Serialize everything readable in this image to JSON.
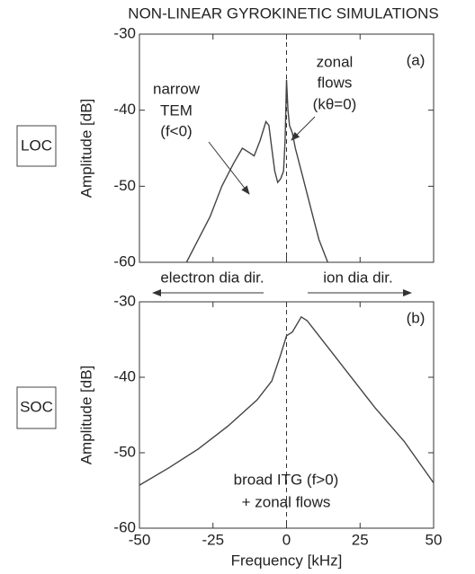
{
  "chart_data": [
    {
      "type": "line",
      "title": "NON-LINEAR GYROKINETIC SIMULATIONS",
      "side_label": "LOC",
      "ylabel": "Amplitude [dB]",
      "annotations": [
        "(a)",
        "narrow",
        "TEM",
        "(f<0)",
        "zonal",
        "flows",
        "(kθ=0)",
        "electron dia dir.",
        "ion dia dir."
      ],
      "x": [
        -34,
        -30,
        -26,
        -22,
        -18,
        -15,
        -13,
        -11,
        -9,
        -7,
        -6,
        -5,
        -4,
        -3,
        -2,
        -1,
        -0.5,
        0,
        0.5,
        1,
        2,
        3,
        5,
        7,
        9,
        11,
        13,
        14
      ],
      "values": [
        -60,
        -57,
        -54,
        -50,
        -47,
        -45,
        -45.5,
        -46,
        -44,
        -41.5,
        -42,
        -45,
        -48,
        -49.5,
        -49,
        -48,
        -44,
        -36,
        -40,
        -42,
        -43,
        -45,
        -48,
        -51,
        -54,
        -57,
        -59,
        -60
      ],
      "color": "#444444",
      "xlim": [
        -50,
        50
      ],
      "xticks": [
        -50,
        -25,
        0,
        25,
        50
      ],
      "ylim": [
        -60,
        -30
      ],
      "yticks": [
        -60,
        -50,
        -40,
        -30
      ]
    },
    {
      "type": "line",
      "side_label": "SOC",
      "ylabel": "Amplitude [dB]",
      "xlabel": "Frequency [kHz]",
      "annotations": [
        "(b)",
        "broad ITG (f>0)",
        "+ zonal flows"
      ],
      "x": [
        -50,
        -40,
        -30,
        -20,
        -10,
        -5,
        -2,
        0,
        2,
        5,
        7,
        10,
        15,
        20,
        30,
        40,
        50
      ],
      "values": [
        -54.3,
        -52,
        -49.5,
        -46.5,
        -43,
        -40.5,
        -37,
        -34.5,
        -34,
        -32,
        -32.5,
        -34,
        -36.5,
        -39,
        -44,
        -48.5,
        -54
      ],
      "color": "#444444",
      "xlim": [
        -50,
        50
      ],
      "xticks": [
        -50,
        -25,
        0,
        25,
        50
      ],
      "ylim": [
        -60,
        -30
      ],
      "yticks": [
        -60,
        -50,
        -40,
        -30
      ]
    }
  ]
}
